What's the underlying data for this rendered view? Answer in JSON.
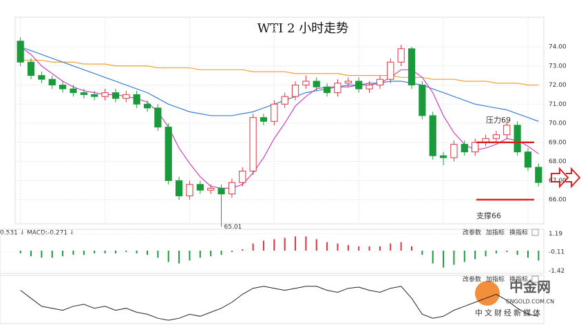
{
  "chart_data": {
    "type": "candlestick",
    "title": "WTI 2 小时走势",
    "opens": [
      74.3,
      73.2,
      72.5,
      72.3,
      72.0,
      71.8,
      71.6,
      71.5,
      71.4,
      71.6,
      71.3,
      71.5,
      71.0,
      70.8,
      69.8,
      67.0,
      66.2,
      66.8,
      66.5,
      66.6,
      66.3,
      66.9,
      67.5,
      70.3,
      70.1,
      71.0,
      71.4,
      72.0,
      72.2,
      71.9,
      71.6,
      72.1,
      72.2,
      71.8,
      72.0,
      72.3,
      73.2,
      73.9,
      72.0,
      70.4,
      68.3,
      68.2,
      68.9,
      68.5,
      69.0,
      69.2,
      69.4,
      69.9,
      68.5,
      67.7
    ],
    "highs": [
      74.5,
      73.4,
      72.7,
      72.5,
      72.2,
      72.0,
      71.8,
      71.7,
      71.8,
      71.8,
      71.7,
      71.7,
      71.2,
      71.0,
      70.0,
      67.2,
      67.0,
      67.0,
      66.8,
      66.8,
      67.1,
      67.7,
      70.5,
      70.5,
      71.2,
      71.6,
      72.2,
      72.5,
      72.4,
      72.1,
      72.3,
      72.4,
      72.4,
      72.2,
      72.5,
      73.4,
      74.1,
      74.0,
      72.2,
      70.6,
      68.5,
      69.1,
      69.1,
      69.2,
      69.4,
      69.6,
      70.1,
      70.1,
      68.7,
      67.9
    ],
    "lows": [
      73.0,
      72.3,
      72.1,
      71.8,
      71.6,
      71.4,
      71.3,
      71.2,
      71.2,
      71.1,
      71.1,
      70.8,
      70.6,
      69.6,
      66.8,
      66.0,
      66.0,
      66.3,
      66.3,
      65.01,
      66.1,
      66.7,
      67.3,
      69.9,
      69.9,
      70.8,
      71.2,
      71.8,
      71.7,
      71.4,
      71.4,
      71.9,
      71.6,
      71.6,
      71.8,
      72.1,
      73.0,
      71.8,
      70.2,
      68.1,
      67.8,
      68.0,
      68.3,
      68.3,
      68.8,
      69.0,
      69.2,
      68.3,
      67.5,
      66.7
    ],
    "closes": [
      73.2,
      72.5,
      72.3,
      72.0,
      71.8,
      71.6,
      71.5,
      71.4,
      71.6,
      71.3,
      71.5,
      71.0,
      70.8,
      69.8,
      67.0,
      66.2,
      66.8,
      66.5,
      66.6,
      66.3,
      66.9,
      67.5,
      70.3,
      70.1,
      71.0,
      71.4,
      72.0,
      72.2,
      71.9,
      71.6,
      72.1,
      72.2,
      71.8,
      72.0,
      72.3,
      73.2,
      73.9,
      72.0,
      70.4,
      68.3,
      68.2,
      68.9,
      68.5,
      69.0,
      69.2,
      69.4,
      69.9,
      68.5,
      67.7,
      66.9
    ],
    "up_color": "#e0303a",
    "down_color": "#1a9a3a",
    "series": [
      {
        "color": "#f0a030",
        "values": [
          73.3,
          73.3,
          73.3,
          73.2,
          73.2,
          73.2,
          73.1,
          73.1,
          73.1,
          73.0,
          73.0,
          73.0,
          73.0,
          72.9,
          72.9,
          72.9,
          72.9,
          72.8,
          72.8,
          72.8,
          72.8,
          72.8,
          72.7,
          72.7,
          72.7,
          72.7,
          72.6,
          72.6,
          72.6,
          72.6,
          72.6,
          72.5,
          72.5,
          72.5,
          72.5,
          72.5,
          72.4,
          72.4,
          72.4,
          72.3,
          72.3,
          72.3,
          72.2,
          72.2,
          72.2,
          72.1,
          72.1,
          72.1,
          72.0,
          72.0
        ]
      },
      {
        "color": "#3a7fd0",
        "values": [
          74.0,
          73.8,
          73.6,
          73.4,
          73.2,
          73.0,
          72.8,
          72.6,
          72.4,
          72.2,
          72.0,
          71.8,
          71.6,
          71.3,
          71.0,
          70.8,
          70.6,
          70.5,
          70.4,
          70.4,
          70.4,
          70.5,
          70.6,
          70.8,
          71.0,
          71.2,
          71.4,
          71.6,
          71.7,
          71.8,
          71.9,
          72.0,
          72.0,
          72.1,
          72.1,
          72.2,
          72.2,
          72.1,
          72.0,
          71.8,
          71.6,
          71.4,
          71.2,
          71.0,
          70.9,
          70.8,
          70.7,
          70.5,
          70.3,
          70.1
        ]
      },
      {
        "color": "#d040c0",
        "values": [
          74.0,
          73.6,
          73.0,
          72.6,
          72.2,
          71.9,
          71.7,
          71.6,
          71.5,
          71.5,
          71.4,
          71.3,
          71.1,
          70.6,
          69.8,
          68.7,
          67.9,
          67.2,
          66.7,
          66.6,
          66.6,
          66.8,
          67.4,
          68.2,
          69.2,
          70.0,
          70.9,
          71.4,
          71.8,
          71.9,
          71.9,
          71.9,
          72.0,
          72.0,
          72.1,
          72.4,
          72.8,
          72.8,
          72.4,
          71.6,
          70.4,
          69.5,
          68.9,
          68.6,
          68.7,
          68.9,
          69.2,
          69.1,
          68.8,
          68.4
        ]
      }
    ],
    "ylim": [
      64.74,
      75.55
    ],
    "yticks": [
      {
        "value": 66,
        "label": "66.00"
      },
      {
        "value": 67,
        "label": "67.00"
      },
      {
        "value": 68,
        "label": "68.00"
      },
      {
        "value": 69,
        "label": "69.00"
      },
      {
        "value": 70,
        "label": "70.00"
      },
      {
        "value": 71,
        "label": "71.00"
      },
      {
        "value": 72,
        "label": "72.00"
      },
      {
        "value": 73,
        "label": "73.00"
      },
      {
        "value": 74,
        "label": "74.00"
      }
    ],
    "grid": true,
    "levels": [
      {
        "label": "压力69",
        "value": 69,
        "color": "#e02020"
      },
      {
        "label": "支撑66",
        "value": 66,
        "color": "#e02020"
      }
    ],
    "macd": {
      "header": "0.531 ↓ MACD:-0.271 ↓",
      "buttons": [
        "改参数",
        "加指标",
        "换指标"
      ],
      "ylim": [
        -1.6,
        1.5
      ],
      "yticks": [
        1.19,
        -0.11,
        -1.42
      ],
      "values": [
        -0.2,
        -0.4,
        -0.5,
        -0.5,
        -0.4,
        -0.3,
        -0.3,
        -0.2,
        -0.2,
        -0.2,
        -0.1,
        -0.2,
        -0.3,
        -0.5,
        -0.8,
        -0.9,
        -0.7,
        -0.5,
        -0.4,
        -0.3,
        -0.1,
        0.1,
        0.5,
        0.7,
        0.8,
        0.9,
        1.0,
        1.0,
        0.8,
        0.6,
        0.5,
        0.4,
        0.3,
        0.3,
        0.3,
        0.5,
        0.6,
        0.3,
        -0.3,
        -0.9,
        -1.2,
        -1.0,
        -0.8,
        -0.6,
        -0.4,
        -0.2,
        -0.1,
        -0.3,
        -0.5,
        -0.7
      ]
    },
    "kd": {
      "buttons": [
        "改参数",
        "加指标",
        "换指标"
      ],
      "ylim": [
        0,
        100
      ],
      "color": "#222222",
      "values": [
        80,
        60,
        40,
        35,
        30,
        40,
        45,
        35,
        40,
        30,
        35,
        25,
        20,
        10,
        5,
        10,
        20,
        15,
        25,
        35,
        50,
        70,
        85,
        90,
        85,
        80,
        85,
        90,
        90,
        80,
        75,
        85,
        88,
        80,
        75,
        85,
        90,
        60,
        20,
        10,
        15,
        30,
        40,
        50,
        60,
        70,
        55,
        35,
        20,
        15
      ]
    },
    "watermark": {
      "brand": "中金网",
      "site": "CNGOLD.COM.CN",
      "slogan": "中文财经新媒体"
    }
  }
}
